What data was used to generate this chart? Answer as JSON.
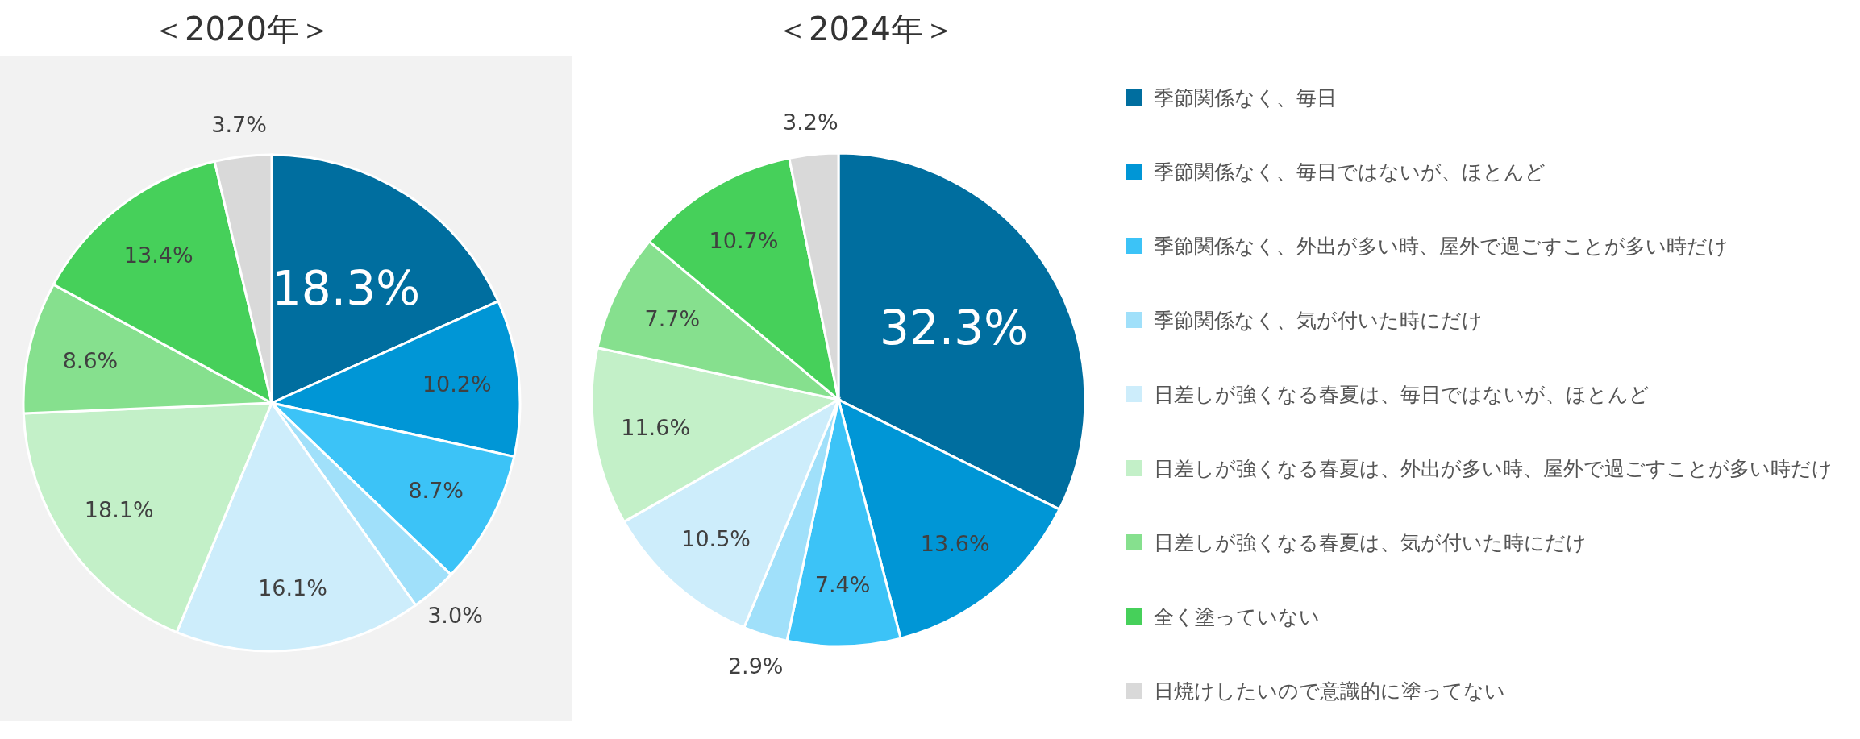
{
  "chart_data": [
    {
      "type": "pie",
      "title": "＜2020年＞",
      "legend": "right",
      "categories": [
        "季節関係なく、毎日",
        "季節関係なく、毎日ではないが、ほとんど",
        "季節関係なく、外出が多い時、屋外で過ごすことが多い時だけ",
        "季節関係なく、気が付いた時にだけ",
        "日差しが強くなる春夏は、毎日ではないが、ほとんど",
        "日差しが強くなる春夏は、外出が多い時、屋外で過ごすことが多い時だけ",
        "日差しが強くなる春夏は、気が付いた時にだけ",
        "全く塗っていない",
        "日焼けしたいので意識的に塗ってない"
      ],
      "values": [
        18.3,
        10.2,
        8.7,
        3.0,
        16.1,
        18.1,
        8.6,
        13.4,
        3.7
      ],
      "value_labels": [
        "18.3%",
        "10.2%",
        "8.7%",
        "3.0%",
        "16.1%",
        "18.1%",
        "8.6%",
        "13.4%",
        "3.7%"
      ],
      "colors": [
        "#006e9f",
        "#0096d6",
        "#3cc3f7",
        "#a0e0fa",
        "#cdedfb",
        "#c3f0c8",
        "#86e08e",
        "#46d05a",
        "#d9d9d9"
      ]
    },
    {
      "type": "pie",
      "title": "＜2024年＞",
      "legend": false,
      "categories": [
        null,
        null,
        null,
        null,
        null,
        null,
        null,
        null,
        null
      ],
      "values": [
        32.3,
        13.6,
        7.4,
        2.9,
        10.5,
        11.6,
        7.7,
        10.7,
        3.2
      ],
      "value_labels": [
        "32.3%",
        "13.6%",
        "7.4%",
        "2.9%",
        "10.5%",
        "11.6%",
        "7.7%",
        "10.7%",
        "3.2%"
      ],
      "colors": [
        "#006e9f",
        "#0096d6",
        "#3cc3f7",
        "#a0e0fa",
        "#cdedfb",
        "#c3f0c8",
        "#86e08e",
        "#46d05a",
        "#d9d9d9"
      ]
    }
  ]
}
